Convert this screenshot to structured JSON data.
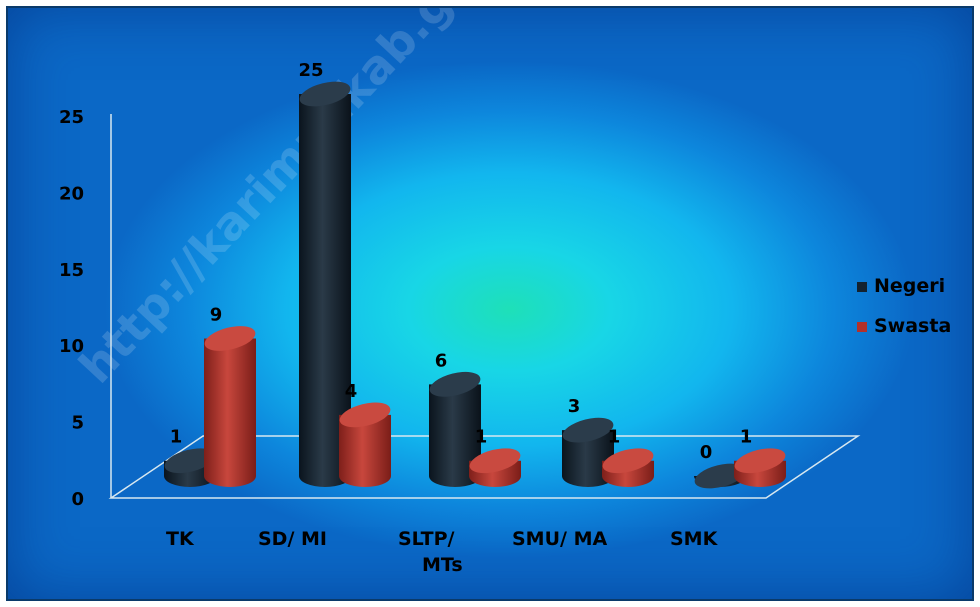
{
  "chart_data": {
    "type": "bar",
    "categories": [
      "TK",
      "SD/ MI",
      "SLTP/\nMTs",
      "SMU/ MA",
      "SMK"
    ],
    "series": [
      {
        "name": "Negeri",
        "values": [
          1,
          25,
          6,
          3,
          0
        ],
        "color": "#14222e"
      },
      {
        "name": "Swasta",
        "values": [
          9,
          4,
          1,
          1,
          1
        ],
        "color": "#b3312a"
      }
    ],
    "ylim": [
      0,
      25
    ],
    "yticks": [
      0,
      5,
      10,
      15,
      20,
      25
    ],
    "legend_position": "right",
    "style": "3d-cylinder",
    "grid": false
  },
  "watermark": "http://karimunkab.go.id"
}
